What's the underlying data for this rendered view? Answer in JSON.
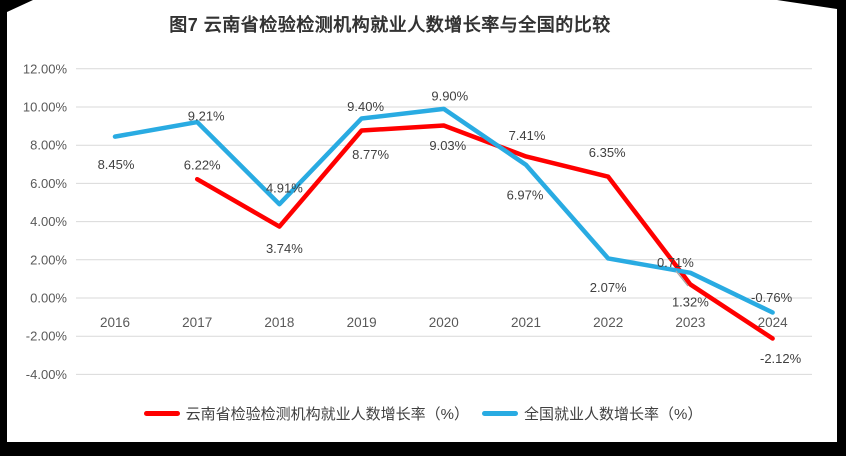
{
  "figure": {
    "background_color": "#000000",
    "card_color": "#FFFFFF"
  },
  "chart_data": {
    "type": "line",
    "title": "图7  云南省检验检测机构就业人数增长率与全国的比较",
    "categories": [
      "2016",
      "2017",
      "2018",
      "2019",
      "2020",
      "2021",
      "2022",
      "2023",
      "2024"
    ],
    "series": [
      {
        "name": "云南省检验检测机构就业人数增长率（%）",
        "color": "#FF0000",
        "values": [
          null,
          6.22,
          3.74,
          8.77,
          9.03,
          7.41,
          6.35,
          0.71,
          -2.12
        ],
        "point_labels": [
          "",
          "6.22%",
          "3.74%",
          "8.77%",
          "9.03%",
          "7.41%",
          "6.35%",
          "0.71%",
          "-2.12%"
        ]
      },
      {
        "name": "全国就业人数增长率（%）",
        "color": "#29ABE2",
        "values": [
          8.45,
          9.21,
          4.91,
          9.4,
          9.9,
          6.97,
          2.07,
          1.32,
          -0.76
        ],
        "point_labels": [
          "8.45%",
          "9.21%",
          "4.91%",
          "9.40%",
          "9.90%",
          "6.97%",
          "2.07%",
          "1.32%",
          "-0.76%"
        ]
      }
    ],
    "y_axis": {
      "min": -4,
      "max": 12,
      "step": 2,
      "tick_labels": [
        "12.00%",
        "10.00%",
        "8.00%",
        "6.00%",
        "4.00%",
        "2.00%",
        "0.00%",
        "-2.00%",
        "-4.00%"
      ]
    },
    "xlabel": "",
    "ylabel": "",
    "grid": true,
    "legend_position": "bottom",
    "colors": {
      "gridline": "#D9D9D9",
      "axis_text": "#595959",
      "data_label_text": "#404040",
      "title_text": "#333333",
      "leader_line": "#A6A6A6"
    }
  }
}
